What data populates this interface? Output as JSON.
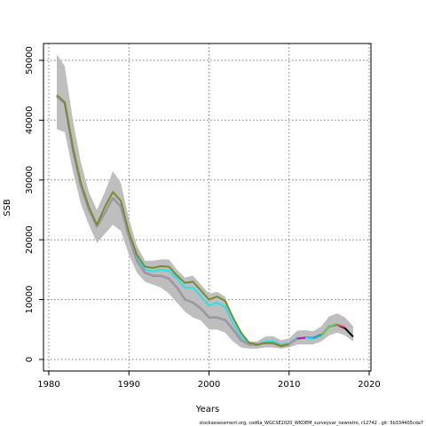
{
  "chart_data": {
    "type": "line",
    "xlabel": "Years",
    "ylabel": "SSB",
    "credit": "stockassessment.org,  cod6a_WGCSE2020_WKDEM_surveyvar_newretro,  r12742 ,  git: 5b334405cda7",
    "xlim": [
      1980,
      2020
    ],
    "ylim": [
      0,
      52000
    ],
    "xticks": [
      1980,
      1990,
      2000,
      2010,
      2020
    ],
    "yticks": [
      0,
      10000,
      20000,
      30000,
      40000,
      50000
    ],
    "grid": true,
    "band": {
      "x": [
        1981,
        1982,
        1983,
        1984,
        1985,
        1986,
        1987,
        1988,
        1989,
        1990,
        1991,
        1992,
        1993,
        1994,
        1995,
        1996,
        1997,
        1998,
        1999,
        2000,
        2001,
        2002,
        2003,
        2004,
        2005,
        2006,
        2007,
        2008,
        2009,
        2010,
        2011,
        2012,
        2013,
        2014,
        2015,
        2016,
        2017,
        2018
      ],
      "lower": [
        38500,
        38000,
        31500,
        26000,
        22500,
        19500,
        21000,
        22500,
        21500,
        17500,
        14500,
        13000,
        12500,
        12000,
        11000,
        9500,
        8000,
        7000,
        6500,
        5000,
        5000,
        4500,
        3000,
        2000,
        1800,
        1800,
        2000,
        2000,
        1800,
        2000,
        2500,
        2500,
        2500,
        3000,
        4000,
        4500,
        4000,
        3000
      ],
      "upper": [
        51000,
        49000,
        40000,
        33000,
        28000,
        25000,
        28000,
        31500,
        29500,
        23500,
        19000,
        16500,
        16500,
        16700,
        16700,
        15000,
        13700,
        14000,
        12500,
        11000,
        11300,
        10500,
        7000,
        4500,
        3000,
        3000,
        3800,
        3900,
        3200,
        3500,
        4800,
        4900,
        4700,
        5500,
        7200,
        7700,
        7000,
        5500
      ]
    },
    "series": [
      {
        "color": "#000000",
        "values": [
          44000,
          42800,
          35000,
          29000,
          25000,
          22200,
          24500,
          27000,
          25500,
          20500,
          16500,
          14500,
          14000,
          14000,
          13500,
          12000,
          10000,
          9500,
          8500,
          7000,
          7000,
          6600,
          5000,
          3200,
          2500,
          2400,
          2800,
          2800,
          2300,
          2600,
          3500,
          3600,
          3500,
          4000,
          5500,
          5800,
          5200,
          3800
        ]
      },
      {
        "color": "#df536b",
        "values": [
          44000,
          42800,
          35000,
          29000,
          25000,
          22200,
          24500,
          27000,
          25500,
          20500,
          16500,
          14500,
          14000,
          14000,
          13500,
          12000,
          10000,
          9500,
          8500,
          7000,
          7000,
          6600,
          5000,
          3200,
          2500,
          2400,
          2800,
          2800,
          2300,
          2600,
          3500,
          3600,
          3500,
          4000,
          5500,
          5800,
          5400,
          null
        ]
      },
      {
        "color": "#61d04f",
        "values": [
          44000,
          42800,
          35000,
          29000,
          25000,
          22200,
          24500,
          27000,
          25500,
          20500,
          16500,
          14500,
          14000,
          14000,
          13500,
          12000,
          10000,
          9500,
          8500,
          7000,
          7000,
          6600,
          5000,
          3200,
          2500,
          2400,
          2800,
          2800,
          2300,
          2600,
          3500,
          3600,
          3500,
          4000,
          5500,
          6000,
          null,
          null
        ]
      },
      {
        "color": "#2297e6",
        "values": [
          44000,
          42800,
          35000,
          29000,
          25000,
          22200,
          24500,
          27000,
          25500,
          20500,
          16500,
          14500,
          14000,
          14000,
          13500,
          12000,
          10000,
          9500,
          8500,
          7000,
          7000,
          6600,
          5000,
          3200,
          2500,
          2400,
          2800,
          2800,
          2300,
          2600,
          3500,
          3700,
          3600,
          4200,
          null,
          null,
          null,
          null
        ]
      },
      {
        "color": "#28e2e5",
        "values": [
          44000,
          42800,
          35000,
          29000,
          25000,
          22200,
          24500,
          27000,
          25500,
          20700,
          17000,
          15000,
          14700,
          15000,
          14800,
          13500,
          12000,
          12000,
          10500,
          9000,
          9500,
          8800,
          6000,
          3800,
          2700,
          2400,
          3000,
          3000,
          2500,
          2700,
          3600,
          3600,
          3400,
          null,
          null,
          null,
          null,
          null
        ]
      },
      {
        "color": "#cd0bbc",
        "values": [
          44000,
          42800,
          35000,
          29000,
          25000,
          22200,
          24500,
          27000,
          25500,
          20500,
          16500,
          14500,
          14000,
          14000,
          13500,
          12000,
          10000,
          9500,
          8500,
          7000,
          7000,
          6600,
          5000,
          3200,
          2500,
          2400,
          2800,
          2800,
          2300,
          2600,
          3500,
          3600,
          null,
          null,
          null,
          null,
          null,
          null
        ]
      },
      {
        "color": "#9e9e9e",
        "values": [
          44000,
          42800,
          35000,
          29000,
          25000,
          22200,
          24500,
          27000,
          25500,
          20500,
          16500,
          14500,
          14000,
          14000,
          13500,
          12000,
          10000,
          9500,
          8500,
          7000,
          7000,
          6600,
          5000,
          3200,
          2500,
          2400,
          2800,
          2800,
          2300,
          2600,
          3500,
          null,
          null,
          null,
          null,
          null,
          null,
          null
        ]
      },
      {
        "color": "#7a8b2d",
        "values": [
          44200,
          43000,
          35500,
          29500,
          25500,
          22500,
          25500,
          28000,
          26500,
          21200,
          17500,
          15500,
          15300,
          15600,
          15500,
          14000,
          12800,
          13000,
          11500,
          10000,
          10500,
          9800,
          7000,
          4500,
          2800,
          2500,
          2700,
          2700,
          2200,
          2500,
          null,
          null,
          null,
          null,
          null,
          null,
          null,
          null
        ]
      }
    ]
  }
}
